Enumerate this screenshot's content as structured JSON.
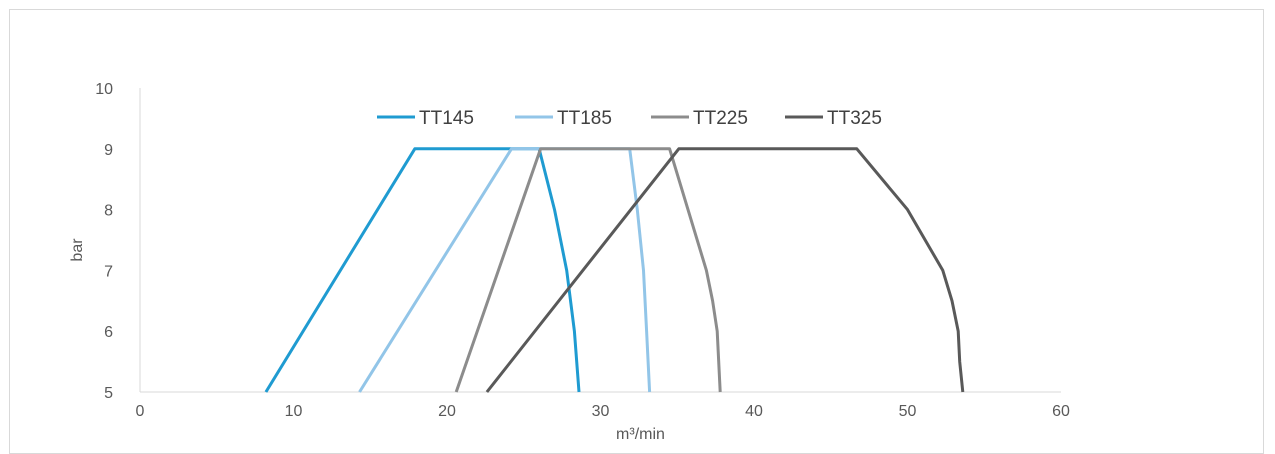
{
  "chart_data": {
    "type": "line",
    "title": "",
    "xlabel": "m³/min",
    "ylabel": "bar",
    "xlim": [
      0,
      60
    ],
    "ylim": [
      5,
      10
    ],
    "x_ticks": [
      0,
      10,
      20,
      30,
      40,
      50,
      60
    ],
    "y_ticks": [
      5,
      6,
      7,
      8,
      9,
      10
    ],
    "grid": false,
    "legend": "top",
    "series": [
      {
        "name": "TT145",
        "color": "#1F9BD1",
        "points": [
          [
            8.2,
            5
          ],
          [
            17.9,
            9
          ],
          [
            26.0,
            9
          ],
          [
            27.0,
            8
          ],
          [
            27.8,
            7
          ],
          [
            28.3,
            6
          ],
          [
            28.6,
            5
          ]
        ]
      },
      {
        "name": "TT185",
        "color": "#92C5E8",
        "points": [
          [
            14.3,
            5
          ],
          [
            24.2,
            9
          ],
          [
            31.9,
            9
          ],
          [
            32.4,
            8
          ],
          [
            32.8,
            7
          ],
          [
            33.0,
            6
          ],
          [
            33.2,
            5
          ]
        ]
      },
      {
        "name": "TT225",
        "color": "#8C8C8C",
        "points": [
          [
            20.6,
            5
          ],
          [
            26.1,
            9
          ],
          [
            34.5,
            9
          ],
          [
            36.9,
            7
          ],
          [
            37.3,
            6.5
          ],
          [
            37.6,
            6
          ],
          [
            37.8,
            5
          ]
        ]
      },
      {
        "name": "TT325",
        "color": "#595959",
        "points": [
          [
            22.6,
            5
          ],
          [
            35.1,
            9
          ],
          [
            46.7,
            9
          ],
          [
            50.0,
            8
          ],
          [
            52.3,
            7
          ],
          [
            52.9,
            6.5
          ],
          [
            53.3,
            6
          ],
          [
            53.4,
            5.5
          ],
          [
            53.6,
            5
          ]
        ]
      }
    ]
  }
}
